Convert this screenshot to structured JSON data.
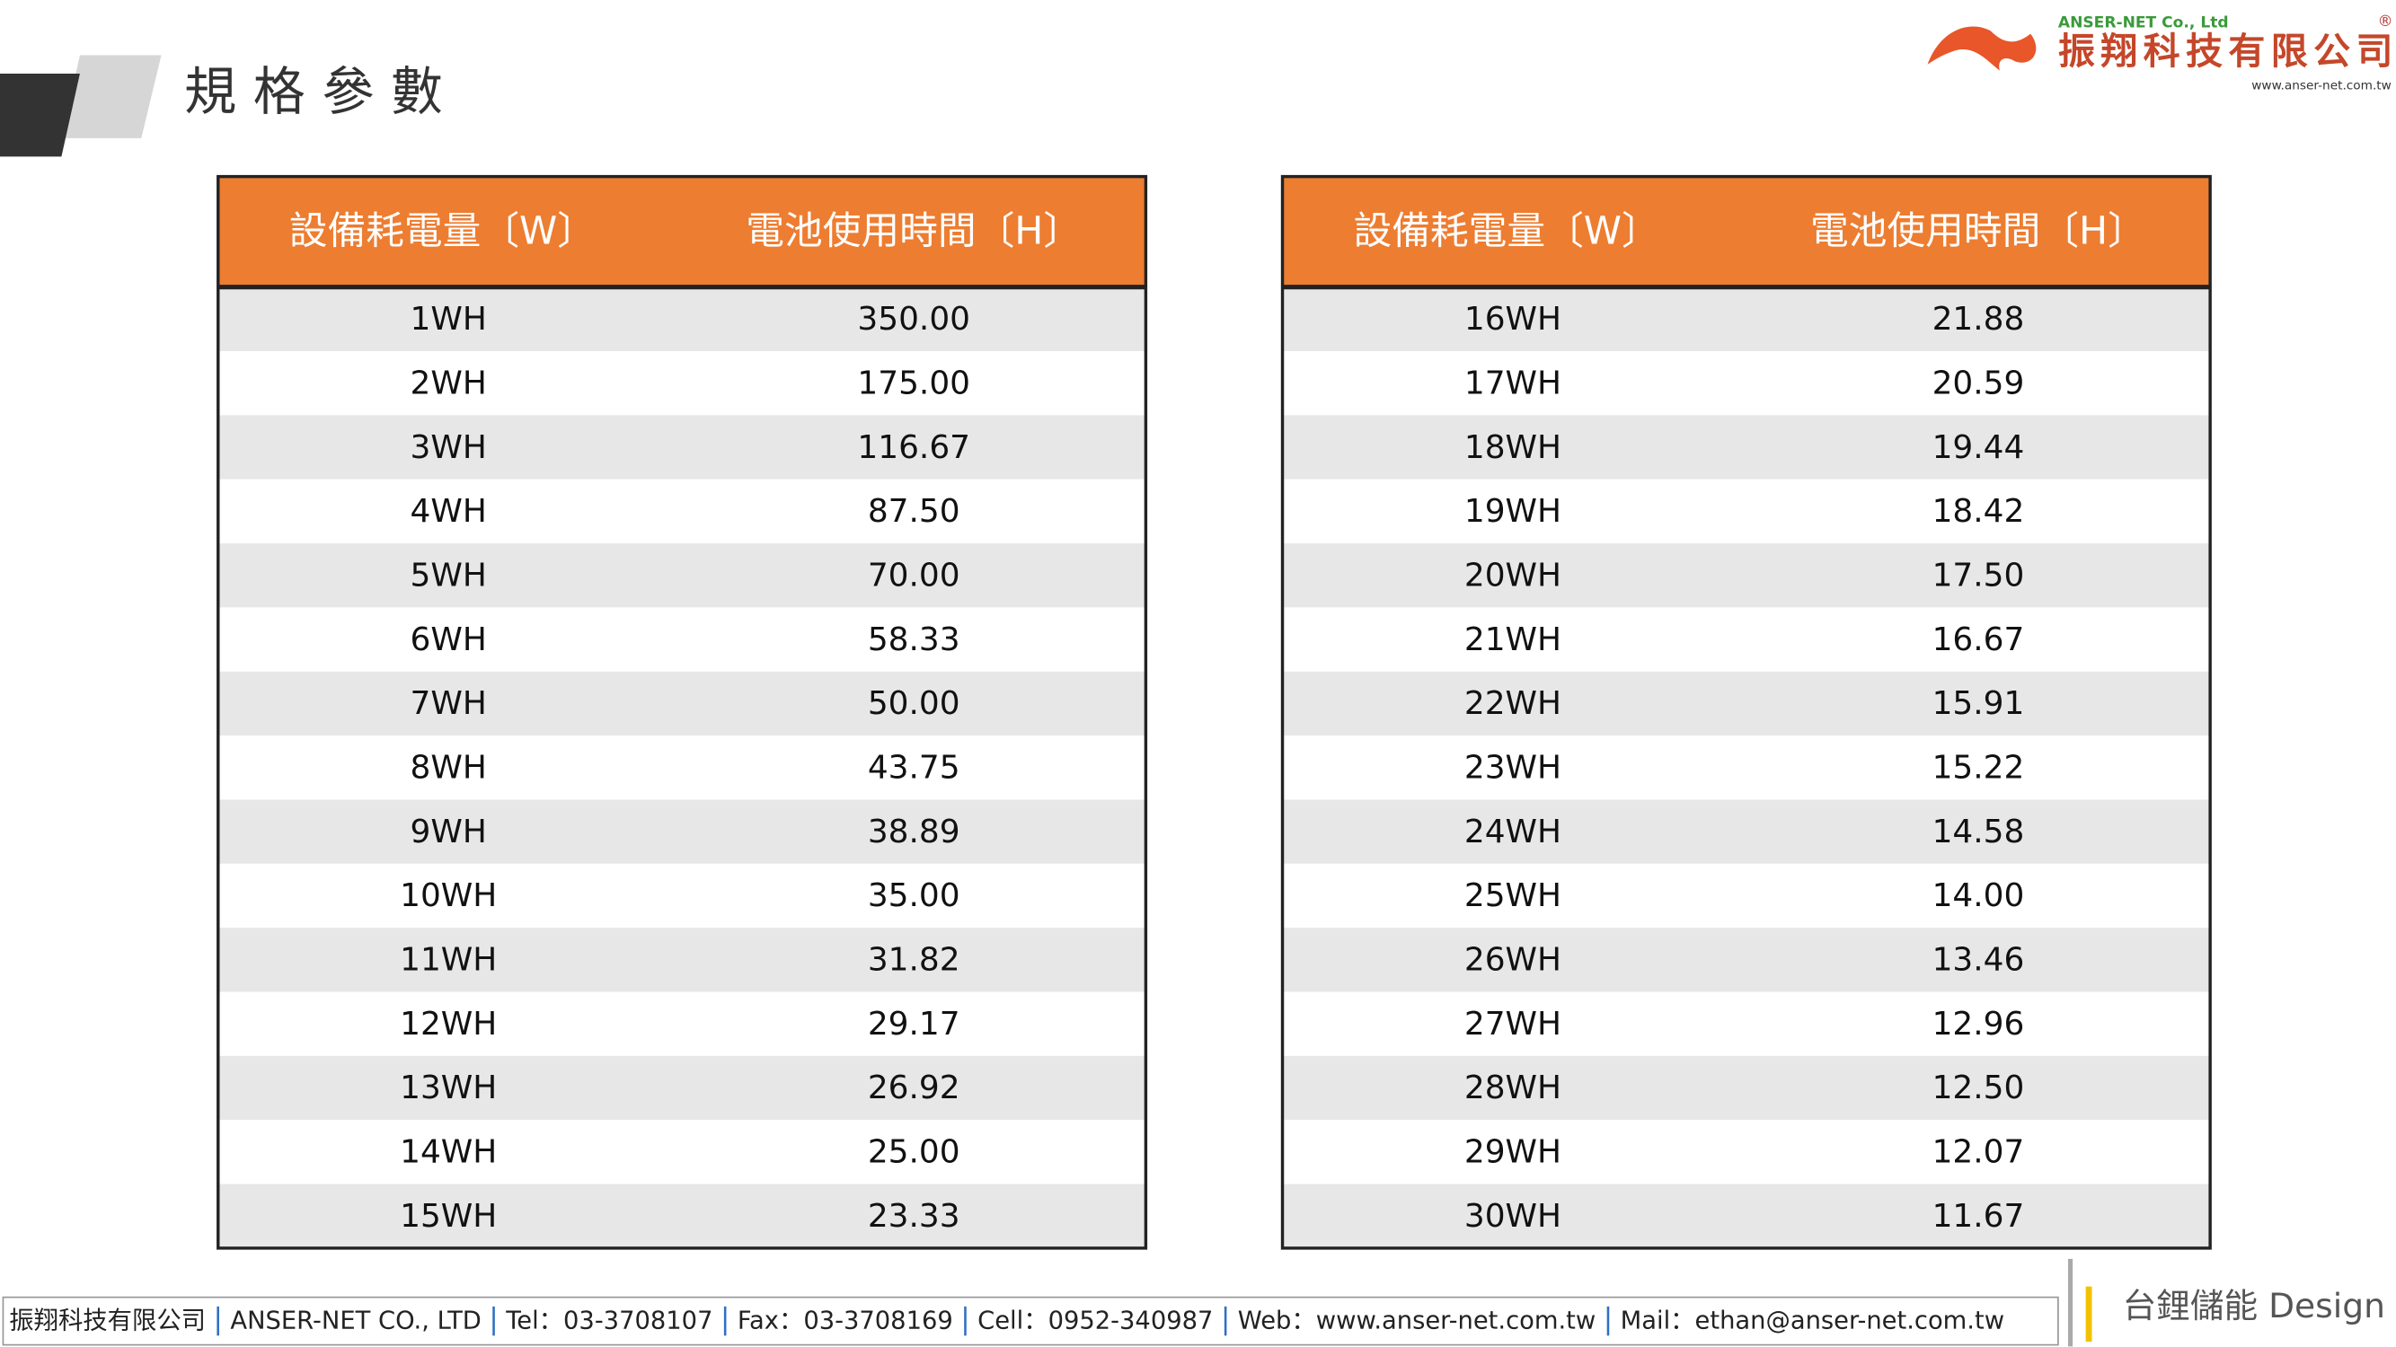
{
  "header": {
    "title": "規 格 參 數",
    "logo": {
      "company_en": "ANSER-NET Co., Ltd",
      "company_zh": "振翔科技有限公司",
      "website": "www.anser-net.com.tw",
      "mark": "®"
    }
  },
  "tables": [
    {
      "columns": [
        "設備耗電量〔W〕",
        "電池使用時間〔H〕"
      ],
      "rows": [
        [
          "1WH",
          "350.00"
        ],
        [
          "2WH",
          "175.00"
        ],
        [
          "3WH",
          "116.67"
        ],
        [
          "4WH",
          "87.50"
        ],
        [
          "5WH",
          "70.00"
        ],
        [
          "6WH",
          "58.33"
        ],
        [
          "7WH",
          "50.00"
        ],
        [
          "8WH",
          "43.75"
        ],
        [
          "9WH",
          "38.89"
        ],
        [
          "10WH",
          "35.00"
        ],
        [
          "11WH",
          "31.82"
        ],
        [
          "12WH",
          "29.17"
        ],
        [
          "13WH",
          "26.92"
        ],
        [
          "14WH",
          "25.00"
        ],
        [
          "15WH",
          "23.33"
        ]
      ]
    },
    {
      "columns": [
        "設備耗電量〔W〕",
        "電池使用時間〔H〕"
      ],
      "rows": [
        [
          "16WH",
          "21.88"
        ],
        [
          "17WH",
          "20.59"
        ],
        [
          "18WH",
          "19.44"
        ],
        [
          "19WH",
          "18.42"
        ],
        [
          "20WH",
          "17.50"
        ],
        [
          "21WH",
          "16.67"
        ],
        [
          "22WH",
          "15.91"
        ],
        [
          "23WH",
          "15.22"
        ],
        [
          "24WH",
          "14.58"
        ],
        [
          "25WH",
          "14.00"
        ],
        [
          "26WH",
          "13.46"
        ],
        [
          "27WH",
          "12.96"
        ],
        [
          "28WH",
          "12.50"
        ],
        [
          "29WH",
          "12.07"
        ],
        [
          "30WH",
          "11.67"
        ]
      ]
    }
  ],
  "footer": {
    "items": [
      "振翔科技有限公司",
      "ANSER-NET  CO.,  LTD",
      "Tel：03-3708107",
      "Fax：03-3708169",
      "Cell：0952-340987",
      "Web：www.anser-net.com.tw",
      "Mail：ethan@anser-net.com.tw"
    ],
    "brand": "台鋰儲能 Design"
  }
}
